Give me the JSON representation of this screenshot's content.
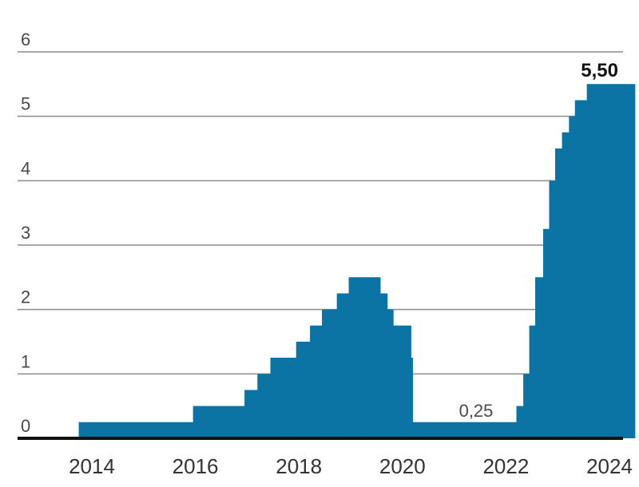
{
  "chart_data": {
    "type": "area",
    "title": "",
    "xlabel": "",
    "ylabel": "",
    "x_ticks": [
      "2014",
      "2016",
      "2018",
      "2020",
      "2022",
      "2024"
    ],
    "y_ticks": [
      "0",
      "1",
      "2",
      "3",
      "4",
      "5",
      "6"
    ],
    "ylim": [
      0,
      6
    ],
    "xlim": [
      "2013-01-01",
      "2024-07-01"
    ],
    "grid": "horizontal",
    "series_color": "#0b74a4",
    "step_series": [
      {
        "date": "2013-10-01",
        "value": 0.25
      },
      {
        "date": "2015-12-16",
        "value": 0.5
      },
      {
        "date": "2016-12-14",
        "value": 0.75
      },
      {
        "date": "2017-03-15",
        "value": 1.0
      },
      {
        "date": "2017-06-14",
        "value": 1.25
      },
      {
        "date": "2017-12-13",
        "value": 1.5
      },
      {
        "date": "2018-03-21",
        "value": 1.75
      },
      {
        "date": "2018-06-13",
        "value": 2.0
      },
      {
        "date": "2018-09-26",
        "value": 2.25
      },
      {
        "date": "2018-12-19",
        "value": 2.5
      },
      {
        "date": "2019-07-31",
        "value": 2.25
      },
      {
        "date": "2019-09-18",
        "value": 2.0
      },
      {
        "date": "2019-10-30",
        "value": 1.75
      },
      {
        "date": "2020-03-03",
        "value": 1.25
      },
      {
        "date": "2020-03-15",
        "value": 0.25
      },
      {
        "date": "2022-03-16",
        "value": 0.5
      },
      {
        "date": "2022-05-04",
        "value": 1.0
      },
      {
        "date": "2022-06-15",
        "value": 1.75
      },
      {
        "date": "2022-07-27",
        "value": 2.5
      },
      {
        "date": "2022-09-21",
        "value": 3.25
      },
      {
        "date": "2022-11-02",
        "value": 4.0
      },
      {
        "date": "2022-12-14",
        "value": 4.5
      },
      {
        "date": "2023-02-01",
        "value": 4.75
      },
      {
        "date": "2023-03-22",
        "value": 5.0
      },
      {
        "date": "2023-05-03",
        "value": 5.25
      },
      {
        "date": "2023-07-26",
        "value": 5.5
      }
    ],
    "end_date": "2024-07-01",
    "annotations": [
      {
        "text": "0,25",
        "date": "2021-08-01",
        "value": 0.25
      },
      {
        "text": "5,50",
        "date": "2024-07-01",
        "value": 5.5
      }
    ]
  }
}
